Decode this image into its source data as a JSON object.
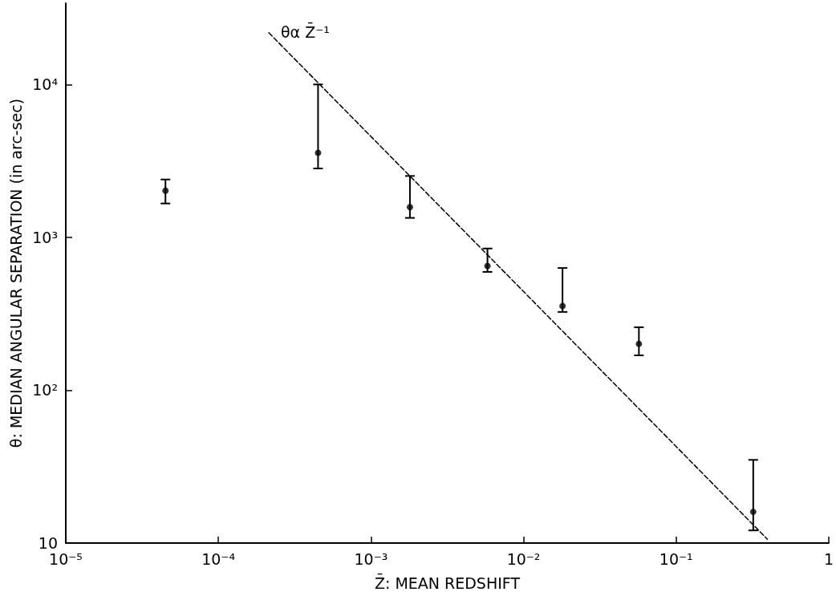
{
  "chart_data": {
    "type": "scatter",
    "xlabel": "Z̄: MEAN REDSHIFT",
    "ylabel": "θ: MEDIAN ANGULAR SEPARATION (in arc-sec)",
    "log": "xy",
    "grid": false,
    "xlim": [
      1e-05,
      1
    ],
    "ylim": [
      10,
      34000
    ],
    "xticks": [
      {
        "value": 1e-05,
        "label": "10⁻⁵"
      },
      {
        "value": 0.0001,
        "label": "10⁻⁴"
      },
      {
        "value": 0.001,
        "label": "10⁻³"
      },
      {
        "value": 0.01,
        "label": "10⁻²"
      },
      {
        "value": 0.1,
        "label": "10⁻¹"
      },
      1
    ],
    "yticks": [
      10,
      {
        "value": 100,
        "label": "10²"
      },
      {
        "value": 1000,
        "label": "10³"
      },
      {
        "value": 10000,
        "label": "10⁴"
      }
    ],
    "annotations": [
      "θα Z̄⁻¹"
    ],
    "series": [
      {
        "color": "#000000",
        "marker": "circle",
        "x": [
          4.5e-05,
          0.00045,
          0.0018,
          0.0058,
          0.018,
          0.057,
          0.32
        ],
        "values": [
          2020,
          3570,
          1575,
          650,
          355,
          201,
          16
        ],
        "errors": [
          [
            1665,
            2390
          ],
          [
            2820,
            10000
          ],
          [
            1340,
            2520
          ],
          [
            594,
            845
          ],
          [
            325,
            630
          ],
          [
            169,
            258
          ],
          [
            12.1,
            35
          ]
        ]
      },
      {
        "type": "line",
        "color": "#000000",
        "marker": "none",
        "line_style": "dashed",
        "x": [
          0.000214,
          0.396
        ],
        "values": [
          21800,
          10.6
        ]
      }
    ]
  }
}
